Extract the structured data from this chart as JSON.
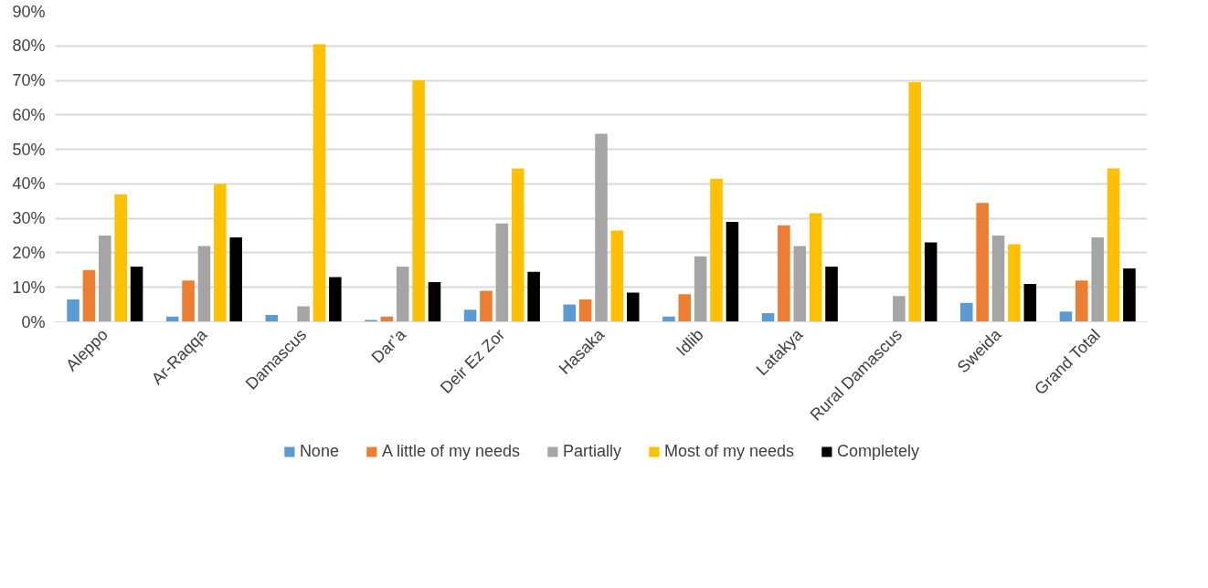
{
  "chart_data": {
    "type": "bar",
    "categories": [
      "Aleppo",
      "Ar-Raqqa",
      "Damascus",
      "Dar’a",
      "Deir Ez Zor",
      "Hasaka",
      "Idlib",
      "Latakya",
      "Rural Damascus",
      "Sweida",
      "Grand Total"
    ],
    "series": [
      {
        "name": "None",
        "color": "#5b9bd5",
        "values": [
          6.5,
          1.5,
          2,
          0.5,
          3.5,
          5,
          1.5,
          2.5,
          0,
          5.5,
          3
        ]
      },
      {
        "name": "A little of my needs",
        "color": "#ed7d31",
        "values": [
          15,
          12,
          0,
          1.5,
          9,
          6.5,
          8,
          28,
          0,
          34.5,
          12
        ]
      },
      {
        "name": "Partially",
        "color": "#a5a5a5",
        "values": [
          25,
          22,
          4.5,
          16,
          28.5,
          54.5,
          19,
          22,
          7.5,
          25,
          24.5
        ]
      },
      {
        "name": "Most of my needs",
        "color": "#ffc000",
        "values": [
          37,
          40,
          80.5,
          70,
          44.5,
          26.5,
          41.5,
          31.5,
          69.5,
          22.5,
          44.5
        ]
      },
      {
        "name": "Completely",
        "color": "#000000",
        "values": [
          16,
          24.5,
          13,
          11.5,
          14.5,
          8.5,
          29,
          16,
          23,
          11,
          15.5
        ]
      }
    ],
    "ylim": [
      0,
      90
    ],
    "yticks": [
      {
        "value": 0,
        "label": "0%"
      },
      {
        "value": 10,
        "label": "10%"
      },
      {
        "value": 20,
        "label": "20%"
      },
      {
        "value": 30,
        "label": "30%"
      },
      {
        "value": 40,
        "label": "40%"
      },
      {
        "value": 50,
        "label": "50%"
      },
      {
        "value": 60,
        "label": "60%"
      },
      {
        "value": 70,
        "label": "70%"
      },
      {
        "value": 80,
        "label": "80%"
      },
      {
        "value": 90,
        "label": "90%"
      }
    ],
    "grid": "y",
    "legend": "bottom"
  }
}
